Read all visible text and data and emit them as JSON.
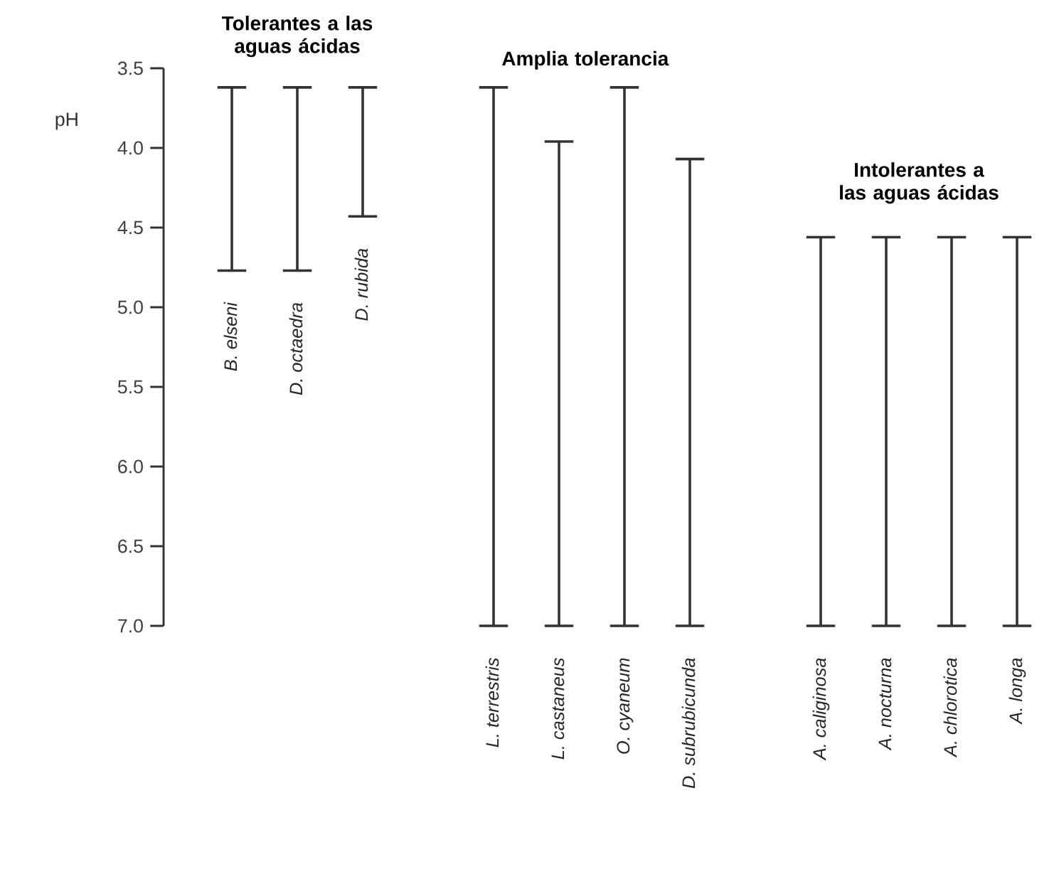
{
  "chart_data": {
    "type": "bar",
    "ylabel": "pH",
    "categories": [
      "B. elseni",
      "D. octaedra",
      "D. rubida",
      null,
      "L. terrestris",
      "L. castaneus",
      "O. cyaneum",
      "D. subrubicunda",
      null,
      "A. caliginosa",
      "A. nocturna",
      "A. chlorotica",
      "A. longa"
    ],
    "base": [
      3.62,
      3.62,
      3.62,
      null,
      3.62,
      3.96,
      3.62,
      4.07,
      null,
      4.56,
      4.56,
      4.56,
      4.56
    ],
    "values": [
      1.15,
      1.15,
      0.81,
      null,
      3.38,
      3.04,
      3.38,
      2.93,
      null,
      2.44,
      2.44,
      2.44,
      2.44
    ],
    "color": "#333333",
    "ylim": [
      7.0,
      3.5
    ],
    "yticks": [
      3.5,
      {
        "value": 4,
        "label": "4.0"
      },
      4.5,
      {
        "value": 5,
        "label": "5.0"
      },
      5.5,
      {
        "value": 6,
        "label": "6.0"
      },
      6.5,
      {
        "value": 7,
        "label": "7.0"
      }
    ],
    "tick_labels": "y",
    "annotations": [
      "Tolerantes a las aguas ácidas",
      "Amplia tolerancia",
      "Intolerantes a las aguas ácidas"
    ]
  }
}
